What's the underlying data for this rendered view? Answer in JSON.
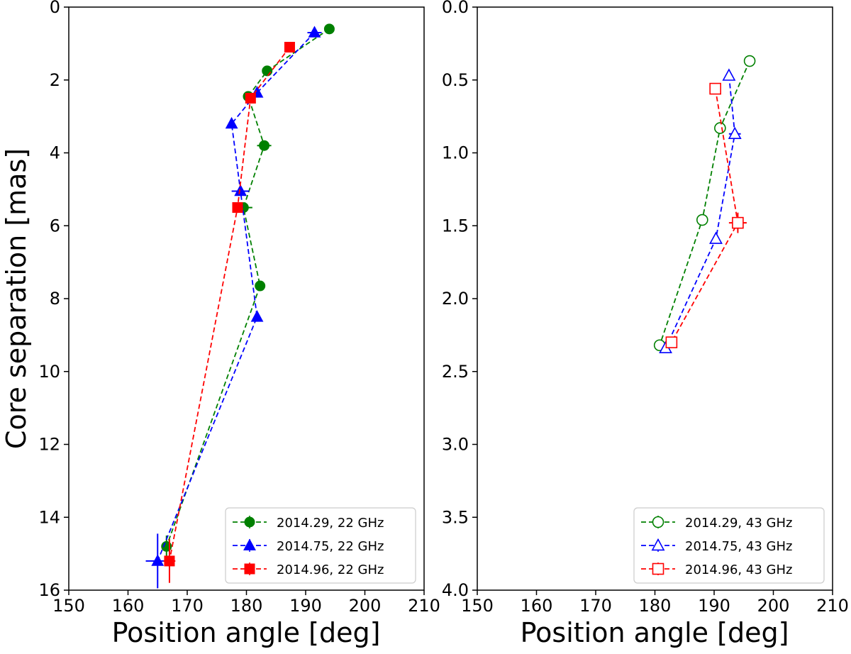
{
  "chart_data": [
    {
      "type": "scatter",
      "panel": "left",
      "title": "",
      "xlabel": "Position angle [deg]",
      "ylabel": "Core separation [mas]",
      "xlim": [
        150,
        210
      ],
      "ylim": [
        16,
        0
      ],
      "y_inverted": true,
      "xticks": [
        "150",
        "160",
        "170",
        "180",
        "190",
        "200",
        "210"
      ],
      "yticks": [
        "0",
        "2",
        "4",
        "6",
        "8",
        "10",
        "12",
        "14",
        "16"
      ],
      "legend_position": "lower-right",
      "series": [
        {
          "name": "2014.29, 22 GHz",
          "color": "#008000",
          "marker": "circle",
          "filled": true,
          "line": "dashed",
          "points": [
            {
              "x": 194.0,
              "y": 0.6,
              "xerr": 0.0,
              "yerr": 0.0
            },
            {
              "x": 183.5,
              "y": 1.75,
              "xerr": 0.0,
              "yerr": 0.0
            },
            {
              "x": 180.3,
              "y": 2.45,
              "xerr": 0.0,
              "yerr": 0.0
            },
            {
              "x": 183.0,
              "y": 3.8,
              "xerr": 1.2,
              "yerr": 0.0
            },
            {
              "x": 179.5,
              "y": 5.5,
              "xerr": 1.5,
              "yerr": 0.0
            },
            {
              "x": 182.3,
              "y": 7.65,
              "xerr": 0.0,
              "yerr": 0.0
            },
            {
              "x": 166.5,
              "y": 14.8,
              "xerr": 0.0,
              "yerr": 0.3
            }
          ]
        },
        {
          "name": "2014.75, 22 GHz",
          "color": "#0000ff",
          "marker": "triangle",
          "filled": true,
          "line": "dashed",
          "points": [
            {
              "x": 191.5,
              "y": 0.7,
              "xerr": 1.2,
              "yerr": 0.0
            },
            {
              "x": 181.8,
              "y": 2.35,
              "xerr": 0.0,
              "yerr": 0.0
            },
            {
              "x": 177.5,
              "y": 3.2,
              "xerr": 0.0,
              "yerr": 0.0
            },
            {
              "x": 179.0,
              "y": 5.05,
              "xerr": 1.5,
              "yerr": 0.0
            },
            {
              "x": 181.8,
              "y": 8.5,
              "xerr": 0.0,
              "yerr": 0.0
            },
            {
              "x": 165.0,
              "y": 15.2,
              "xerr": 2.0,
              "yerr": 0.75
            }
          ]
        },
        {
          "name": "2014.96, 22 GHz",
          "color": "#ff0000",
          "marker": "square",
          "filled": true,
          "line": "dashed",
          "points": [
            {
              "x": 187.3,
              "y": 1.1,
              "xerr": 0.0,
              "yerr": 0.0
            },
            {
              "x": 180.7,
              "y": 2.5,
              "xerr": 0.0,
              "yerr": 0.0
            },
            {
              "x": 178.5,
              "y": 5.5,
              "xerr": 0.0,
              "yerr": 0.0
            },
            {
              "x": 167.0,
              "y": 15.2,
              "xerr": 1.0,
              "yerr": 0.6
            }
          ]
        }
      ]
    },
    {
      "type": "scatter",
      "panel": "right",
      "title": "",
      "xlabel": "Position angle [deg]",
      "ylabel": "",
      "xlim": [
        150,
        210
      ],
      "ylim": [
        4.0,
        0.0
      ],
      "y_inverted": true,
      "xticks": [
        "150",
        "160",
        "170",
        "180",
        "190",
        "200",
        "210"
      ],
      "yticks": [
        "0.0",
        "0.5",
        "1.0",
        "1.5",
        "2.0",
        "2.5",
        "3.0",
        "3.5",
        "4.0"
      ],
      "legend_position": "lower-right",
      "series": [
        {
          "name": "2014.29, 43 GHz",
          "color": "#008000",
          "marker": "circle",
          "filled": false,
          "line": "dashed",
          "points": [
            {
              "x": 196.0,
              "y": 0.37,
              "xerr": 0.0,
              "yerr": 0.0
            },
            {
              "x": 191.0,
              "y": 0.83,
              "xerr": 0.0,
              "yerr": 0.0
            },
            {
              "x": 188.0,
              "y": 1.46,
              "xerr": 0.0,
              "yerr": 0.0
            },
            {
              "x": 180.8,
              "y": 2.32,
              "xerr": 0.0,
              "yerr": 0.0
            }
          ]
        },
        {
          "name": "2014.75, 43 GHz",
          "color": "#0000ff",
          "marker": "triangle",
          "filled": false,
          "line": "dashed",
          "points": [
            {
              "x": 192.5,
              "y": 0.47,
              "xerr": 0.0,
              "yerr": 0.0
            },
            {
              "x": 193.5,
              "y": 0.87,
              "xerr": 1.0,
              "yerr": 0.0
            },
            {
              "x": 190.3,
              "y": 1.59,
              "xerr": 0.0,
              "yerr": 0.0
            },
            {
              "x": 181.8,
              "y": 2.34,
              "xerr": 0.0,
              "yerr": 0.0
            }
          ]
        },
        {
          "name": "2014.96, 43 GHz",
          "color": "#ff0000",
          "marker": "square",
          "filled": false,
          "line": "dashed",
          "points": [
            {
              "x": 190.2,
              "y": 0.56,
              "xerr": 0.0,
              "yerr": 0.0
            },
            {
              "x": 194.0,
              "y": 1.48,
              "xerr": 1.5,
              "yerr": 0.07
            },
            {
              "x": 182.8,
              "y": 2.3,
              "xerr": 0.0,
              "yerr": 0.0
            }
          ]
        }
      ]
    }
  ]
}
